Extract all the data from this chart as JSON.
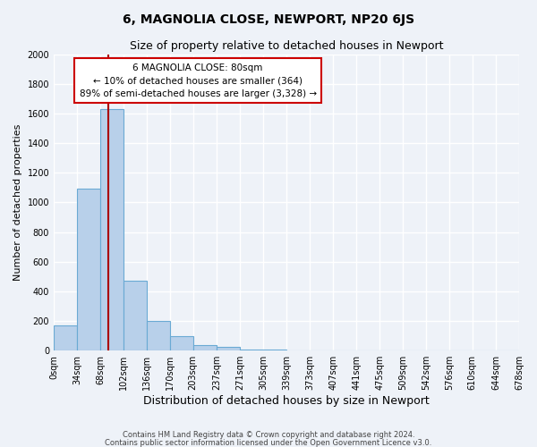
{
  "title": "6, MAGNOLIA CLOSE, NEWPORT, NP20 6JS",
  "subtitle": "Size of property relative to detached houses in Newport",
  "xlabel": "Distribution of detached houses by size in Newport",
  "ylabel": "Number of detached properties",
  "bar_color": "#b8d0ea",
  "bar_edge_color": "#6aaad4",
  "background_color": "#eef2f8",
  "grid_color": "#ffffff",
  "bin_edges": [
    0,
    34,
    68,
    102,
    136,
    170,
    203,
    237,
    271,
    305,
    339,
    373,
    407,
    441,
    475,
    509,
    542,
    576,
    610,
    644,
    678
  ],
  "bin_labels": [
    "0sqm",
    "34sqm",
    "68sqm",
    "102sqm",
    "136sqm",
    "170sqm",
    "203sqm",
    "237sqm",
    "271sqm",
    "305sqm",
    "339sqm",
    "373sqm",
    "407sqm",
    "441sqm",
    "475sqm",
    "509sqm",
    "542sqm",
    "576sqm",
    "610sqm",
    "644sqm",
    "678sqm"
  ],
  "bar_heights": [
    170,
    1090,
    1630,
    470,
    200,
    100,
    40,
    25,
    10,
    5,
    3,
    2,
    1,
    0,
    0,
    0,
    0,
    0,
    0,
    0
  ],
  "red_line_x": 80,
  "annotation_title": "6 MAGNOLIA CLOSE: 80sqm",
  "annotation_line1": "← 10% of detached houses are smaller (364)",
  "annotation_line2": "89% of semi-detached houses are larger (3,328) →",
  "annotation_box_color": "#ffffff",
  "annotation_box_edge": "#cc0000",
  "red_line_color": "#aa0000",
  "ylim": [
    0,
    2000
  ],
  "yticks": [
    0,
    200,
    400,
    600,
    800,
    1000,
    1200,
    1400,
    1600,
    1800,
    2000
  ],
  "footer1": "Contains HM Land Registry data © Crown copyright and database right 2024.",
  "footer2": "Contains public sector information licensed under the Open Government Licence v3.0."
}
